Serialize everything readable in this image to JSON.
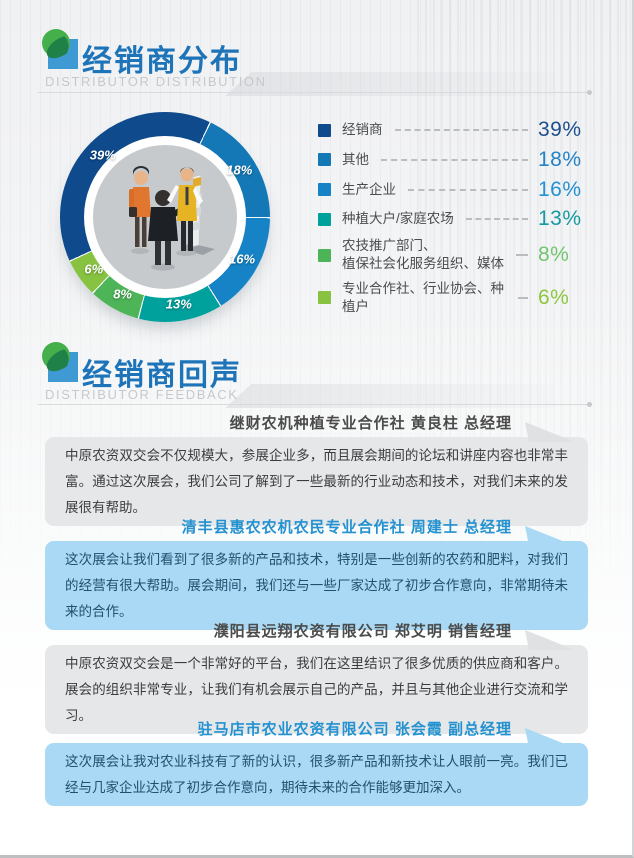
{
  "sections": [
    {
      "title": "经销商分布",
      "subtitle": "DISTRIBUTOR DISTRIBUTION"
    },
    {
      "title": "经销商回声",
      "subtitle": "DISTRIBUTOR FEEDBACK"
    }
  ],
  "icons": {
    "logo": "leaf-square-logo",
    "donut_center": "business-people-meeting-illustration"
  },
  "chart_data": {
    "type": "pie",
    "title": "经销商分布",
    "legend_position": "right",
    "start_angle": 244.8,
    "slices": [
      {
        "label": "经销商",
        "value": 39,
        "color": "#0e4a8c",
        "value_color": "#1d4f8d"
      },
      {
        "label": "其他",
        "value": 18,
        "color": "#1478b6",
        "value_color": "#2383c4"
      },
      {
        "label": "生产企业",
        "value": 16,
        "color": "#1583c6",
        "value_color": "#2491d2"
      },
      {
        "label": "种植大户/家庭农场",
        "value": 13,
        "color": "#00a09d",
        "value_color": "#169aa3"
      },
      {
        "label": "农技推广部门、\n植保社会化服务组织、媒体",
        "value": 8,
        "color": "#4db457",
        "value_color": "#72c56f"
      },
      {
        "label": "专业合作社、行业协会、种植户",
        "value": 6,
        "color": "#87c341",
        "value_color": "#8dc63f"
      }
    ]
  },
  "testimonials": [
    {
      "style": "gray",
      "attribution": "继财农机种植专业合作社  黄良柱  总经理",
      "quote": "中原农资双交会不仅规模大，参展企业多，而且展会期间的论坛和讲座内容也非常丰富。通过这次展会，我们公司了解到了一些最新的行业动态和技术，对我们未来的发展很有帮助。"
    },
    {
      "style": "blue",
      "attribution": "清丰县惠农农机农民专业合作社 周建士 总经理",
      "quote": "这次展会让我们看到了很多新的产品和技术，特别是一些创新的农药和肥料，对我们的经营有很大帮助。展会期间，我们还与一些厂家达成了初步合作意向，非常期待未来的合作。"
    },
    {
      "style": "gray",
      "attribution": "濮阳县远翔农资有限公司  郑艾明  销售经理",
      "quote": "中原农资双交会是一个非常好的平台，我们在这里结识了很多优质的供应商和客户。展会的组织非常专业，让我们有机会展示自己的产品，并且与其他企业进行交流和学习。"
    },
    {
      "style": "blue",
      "attribution": "驻马店市农业农资有限公司  张会霞  副总经理",
      "quote": "这次展会让我对农业科技有了新的认识，很多新产品和新技术让人眼前一亮。我们已经与几家企业达成了初步合作意向，期待未来的合作能够更加深入。"
    }
  ]
}
